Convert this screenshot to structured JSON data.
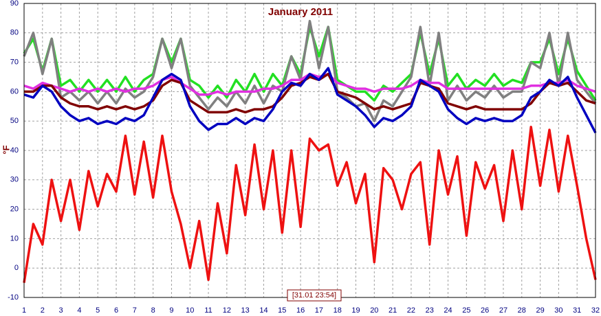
{
  "chart_data": {
    "type": "line",
    "title": "January 2011",
    "y_label": "°F",
    "annotation": "[31.01 23:54]",
    "x": [
      1,
      1.5,
      2,
      2.5,
      3,
      3.5,
      4,
      4.5,
      5,
      5.5,
      6,
      6.5,
      7,
      7.5,
      8,
      8.5,
      9,
      9.5,
      10,
      10.5,
      11,
      11.5,
      12,
      12.5,
      13,
      13.5,
      14,
      14.5,
      15,
      15.5,
      16,
      16.5,
      17,
      17.5,
      18,
      18.5,
      19,
      19.5,
      20,
      20.5,
      21,
      21.5,
      22,
      22.5,
      23,
      23.5,
      24,
      24.5,
      25,
      25.5,
      26,
      26.5,
      27,
      27.5,
      28,
      28.5,
      29,
      29.5,
      30,
      30.5,
      31,
      31.5,
      32
    ],
    "series": [
      {
        "color": "#22e022",
        "values": [
          73,
          78,
          67,
          78,
          62,
          64,
          60,
          64,
          60,
          64,
          60,
          65,
          60,
          64,
          66,
          78,
          70,
          78,
          64,
          62,
          58,
          62,
          58,
          64,
          60,
          66,
          60,
          66,
          62,
          72,
          66,
          82,
          72,
          82,
          64,
          62,
          60,
          60,
          57,
          62,
          60,
          63,
          66,
          80,
          66,
          78,
          62,
          66,
          61,
          64,
          62,
          66,
          62,
          64,
          63,
          70,
          70,
          78,
          66,
          78,
          67,
          62,
          57
        ]
      },
      {
        "color": "#808080",
        "values": [
          72,
          80,
          66,
          78,
          58,
          60,
          57,
          60,
          56,
          60,
          56,
          61,
          58,
          60,
          65,
          78,
          68,
          78,
          62,
          58,
          54,
          58,
          55,
          60,
          56,
          62,
          56,
          62,
          60,
          72,
          64,
          84,
          68,
          82,
          60,
          58,
          55,
          56,
          50,
          57,
          55,
          60,
          65,
          82,
          62,
          80,
          57,
          62,
          57,
          60,
          58,
          62,
          58,
          60,
          60,
          70,
          68,
          80,
          62,
          80,
          64,
          60,
          56
        ]
      },
      {
        "color": "#e030e0",
        "values": [
          62,
          61,
          63,
          62,
          61,
          60,
          61,
          60,
          61,
          60,
          61,
          60,
          61,
          61,
          62,
          64,
          65,
          63,
          61,
          59,
          59,
          60,
          59,
          60,
          60,
          60,
          61,
          61,
          62,
          64,
          64,
          66,
          65,
          66,
          63,
          62,
          61,
          61,
          60,
          61,
          61,
          61,
          62,
          64,
          63,
          63,
          61,
          61,
          61,
          61,
          61,
          61,
          61,
          61,
          61,
          62,
          62,
          63,
          63,
          64,
          62,
          61,
          60
        ]
      },
      {
        "color": "#800000",
        "values": [
          60,
          60,
          62,
          62,
          58,
          56,
          55,
          55,
          54,
          55,
          54,
          55,
          54,
          55,
          57,
          62,
          64,
          63,
          57,
          55,
          53,
          53,
          53,
          54,
          53,
          54,
          54,
          55,
          58,
          62,
          63,
          65,
          64,
          66,
          60,
          59,
          58,
          56,
          54,
          55,
          54,
          55,
          56,
          63,
          62,
          61,
          56,
          55,
          54,
          55,
          54,
          54,
          54,
          54,
          54,
          56,
          60,
          63,
          62,
          63,
          60,
          57,
          56
        ]
      },
      {
        "color": "#0000c0",
        "values": [
          59,
          58,
          62,
          60,
          55,
          52,
          50,
          51,
          49,
          50,
          49,
          51,
          50,
          52,
          58,
          64,
          66,
          64,
          55,
          50,
          47,
          49,
          49,
          51,
          49,
          51,
          50,
          54,
          60,
          63,
          62,
          66,
          64,
          68,
          59,
          57,
          55,
          52,
          48,
          51,
          50,
          52,
          55,
          64,
          62,
          60,
          54,
          51,
          49,
          51,
          50,
          51,
          50,
          50,
          52,
          58,
          60,
          64,
          62,
          65,
          58,
          52,
          46
        ]
      },
      {
        "color": "#ee1111",
        "values": [
          -5,
          15,
          8,
          30,
          16,
          30,
          13,
          33,
          21,
          32,
          26,
          45,
          25,
          43,
          24,
          45,
          26,
          15,
          0,
          16,
          -4,
          22,
          5,
          35,
          18,
          42,
          20,
          40,
          12,
          40,
          14,
          44,
          40,
          42,
          28,
          36,
          22,
          32,
          2,
          34,
          30,
          20,
          32,
          36,
          8,
          40,
          25,
          38,
          11,
          36,
          27,
          35,
          16,
          40,
          20,
          48,
          28,
          47,
          26,
          45,
          28,
          10,
          -4
        ]
      }
    ],
    "xlim": [
      1,
      32
    ],
    "ylim": [
      -10,
      90
    ],
    "xticks": [
      1,
      2,
      3,
      4,
      5,
      6,
      7,
      8,
      9,
      10,
      11,
      12,
      13,
      14,
      15,
      16,
      17,
      18,
      19,
      20,
      21,
      22,
      23,
      24,
      25,
      26,
      27,
      28,
      29,
      30,
      31,
      32
    ],
    "yticks": [
      -10,
      0,
      10,
      20,
      30,
      40,
      50,
      60,
      70,
      80,
      90
    ],
    "grid": true
  }
}
